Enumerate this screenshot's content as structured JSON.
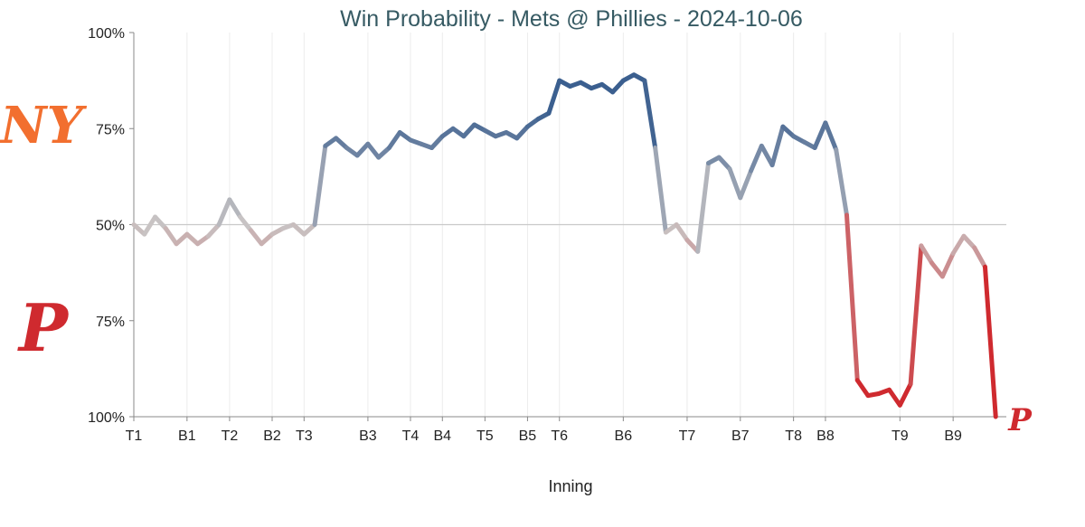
{
  "chart_data": {
    "type": "line",
    "title": "Win Probability - Mets @ Phillies - 2024-10-06",
    "xlabel": "Inning",
    "ylabel": "",
    "y_ticks": [
      "100%",
      "75%",
      "50%",
      "75%",
      "100%"
    ],
    "ylim": [
      0,
      100
    ],
    "y_meaning": "Mets win probability (%); 100 = top, 0 = bottom (Phillies 100%)",
    "reference_line": 50,
    "grid": "vertical",
    "team_top": {
      "name": "Mets",
      "logo_text": "NY",
      "color": "#3b5f8f",
      "logo_color": "#f26f2f"
    },
    "team_bottom": {
      "name": "Phillies",
      "logo_text": "P",
      "color": "#cf2a2f"
    },
    "neutral_color": "#c8c4c4",
    "x_ticks": [
      {
        "label": "T1",
        "index": 0
      },
      {
        "label": "B1",
        "index": 5
      },
      {
        "label": "T2",
        "index": 9
      },
      {
        "label": "B2",
        "index": 13
      },
      {
        "label": "T3",
        "index": 16
      },
      {
        "label": "B3",
        "index": 22
      },
      {
        "label": "T4",
        "index": 26
      },
      {
        "label": "B4",
        "index": 29
      },
      {
        "label": "T5",
        "index": 33
      },
      {
        "label": "B5",
        "index": 37
      },
      {
        "label": "T6",
        "index": 40
      },
      {
        "label": "B6",
        "index": 46
      },
      {
        "label": "T7",
        "index": 52
      },
      {
        "label": "B7",
        "index": 57
      },
      {
        "label": "T8",
        "index": 62
      },
      {
        "label": "B8",
        "index": 65
      },
      {
        "label": "T9",
        "index": 72
      },
      {
        "label": "B9",
        "index": 77
      }
    ],
    "x_max_index": 82,
    "values": [
      50,
      47.5,
      52,
      49,
      45,
      47.5,
      45,
      47,
      50,
      56.5,
      52,
      48.5,
      45,
      47.5,
      49,
      50,
      47.5,
      50,
      70.5,
      72.5,
      70,
      68,
      71,
      67.5,
      70,
      74,
      72,
      71,
      70,
      73,
      75,
      73,
      76,
      74.5,
      73,
      74,
      72.5,
      75.5,
      77.5,
      79,
      87.5,
      86,
      87,
      85.5,
      86.5,
      84.5,
      87.5,
      89,
      87.5,
      70,
      48,
      50,
      46,
      43,
      66,
      67.5,
      64.5,
      57,
      64,
      70.5,
      65.5,
      75.5,
      73,
      71.5,
      70,
      76.5,
      69.5,
      52.5,
      9.5,
      5.5,
      6,
      7,
      3,
      8.5,
      44.5,
      40,
      36.5,
      42.5,
      47,
      44,
      39,
      0
    ]
  }
}
